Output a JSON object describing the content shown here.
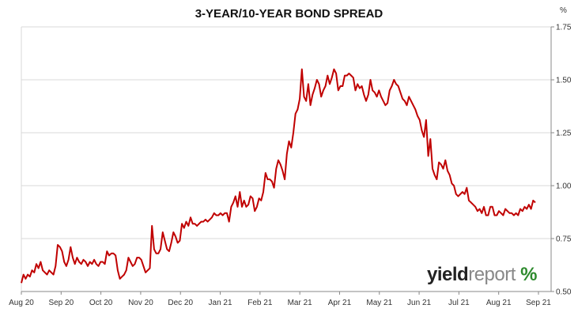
{
  "chart_data": {
    "type": "line",
    "title": "3-YEAR/10-YEAR BOND SPREAD",
    "unit_label": "%",
    "ylim": [
      0.5,
      1.75
    ],
    "y_ticks": [
      "0.50",
      "0.75",
      "1.00",
      "1.25",
      "1.50",
      "1.75"
    ],
    "x_ticks": [
      "Aug 20",
      "Sep 20",
      "Oct 20",
      "Nov 20",
      "Dec 20",
      "Jan 21",
      "Feb 21",
      "Mar 21",
      "Apr 21",
      "May 21",
      "Jun 21",
      "Jul 21",
      "Aug 21",
      "Sep 21"
    ],
    "grid": "horizontal",
    "line_color": "#c00000",
    "values": [
      0.54,
      0.58,
      0.56,
      0.58,
      0.57,
      0.6,
      0.59,
      0.63,
      0.61,
      0.64,
      0.6,
      0.59,
      0.58,
      0.6,
      0.59,
      0.58,
      0.62,
      0.72,
      0.71,
      0.69,
      0.64,
      0.62,
      0.65,
      0.71,
      0.66,
      0.63,
      0.66,
      0.64,
      0.63,
      0.65,
      0.64,
      0.62,
      0.64,
      0.63,
      0.65,
      0.63,
      0.62,
      0.64,
      0.64,
      0.63,
      0.69,
      0.67,
      0.68,
      0.68,
      0.67,
      0.6,
      0.56,
      0.57,
      0.58,
      0.6,
      0.66,
      0.64,
      0.62,
      0.63,
      0.66,
      0.66,
      0.65,
      0.62,
      0.59,
      0.6,
      0.61,
      0.81,
      0.7,
      0.68,
      0.68,
      0.7,
      0.78,
      0.74,
      0.7,
      0.69,
      0.73,
      0.78,
      0.76,
      0.73,
      0.74,
      0.82,
      0.8,
      0.83,
      0.81,
      0.85,
      0.82,
      0.82,
      0.81,
      0.82,
      0.83,
      0.83,
      0.84,
      0.83,
      0.84,
      0.85,
      0.87,
      0.86,
      0.86,
      0.87,
      0.86,
      0.87,
      0.87,
      0.83,
      0.9,
      0.92,
      0.95,
      0.9,
      0.97,
      0.9,
      0.93,
      0.9,
      0.91,
      0.95,
      0.94,
      0.88,
      0.9,
      0.94,
      0.93,
      0.97,
      1.06,
      1.03,
      1.03,
      1.02,
      0.99,
      1.08,
      1.12,
      1.1,
      1.07,
      1.03,
      1.15,
      1.21,
      1.18,
      1.25,
      1.34,
      1.36,
      1.41,
      1.55,
      1.42,
      1.4,
      1.48,
      1.38,
      1.43,
      1.46,
      1.5,
      1.48,
      1.42,
      1.45,
      1.47,
      1.52,
      1.48,
      1.51,
      1.55,
      1.53,
      1.45,
      1.47,
      1.47,
      1.52,
      1.52,
      1.53,
      1.52,
      1.51,
      1.45,
      1.48,
      1.46,
      1.47,
      1.43,
      1.4,
      1.43,
      1.5,
      1.45,
      1.44,
      1.42,
      1.45,
      1.42,
      1.4,
      1.38,
      1.39,
      1.45,
      1.47,
      1.5,
      1.48,
      1.47,
      1.44,
      1.41,
      1.4,
      1.38,
      1.42,
      1.4,
      1.38,
      1.36,
      1.33,
      1.31,
      1.26,
      1.23,
      1.31,
      1.14,
      1.22,
      1.08,
      1.05,
      1.03,
      1.11,
      1.1,
      1.08,
      1.12,
      1.07,
      1.05,
      1.01,
      1.0,
      0.96,
      0.95,
      0.96,
      0.97,
      0.96,
      0.99,
      0.93,
      0.92,
      0.91,
      0.9,
      0.88,
      0.89,
      0.87,
      0.9,
      0.86,
      0.86,
      0.9,
      0.9,
      0.86,
      0.86,
      0.88,
      0.87,
      0.86,
      0.89,
      0.88,
      0.87,
      0.87,
      0.86,
      0.87,
      0.86,
      0.89,
      0.88,
      0.9,
      0.89,
      0.91,
      0.89,
      0.93,
      0.92
    ]
  },
  "logo": {
    "part1": "yield",
    "part2": "report",
    "part3": "%"
  }
}
